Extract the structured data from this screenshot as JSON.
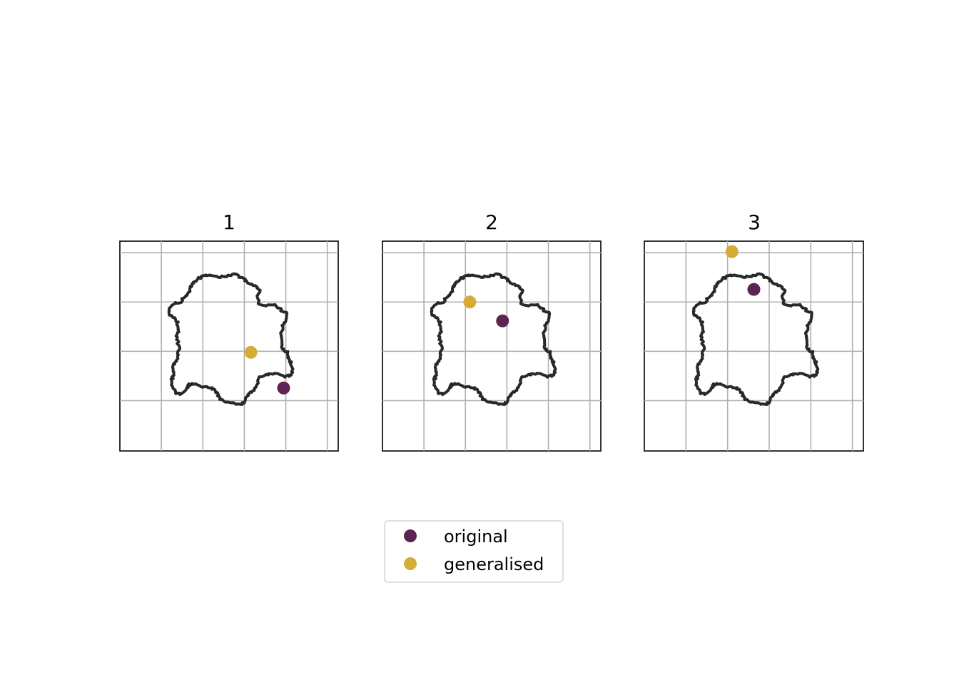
{
  "chart_data": {
    "type": "scatter",
    "panels": [
      {
        "title": "1",
        "original": [
          0.75,
          0.3
        ],
        "generalised": [
          0.6,
          0.47
        ]
      },
      {
        "title": "2",
        "original": [
          0.55,
          0.62
        ],
        "generalised": [
          0.4,
          0.71
        ]
      },
      {
        "title": "3",
        "original": [
          0.5,
          0.77
        ],
        "generalised": [
          0.4,
          0.95
        ]
      }
    ],
    "legend": {
      "entries": [
        {
          "label": "original",
          "color": "#5c2452"
        },
        {
          "label": "generalised",
          "color": "#d4ac36"
        }
      ],
      "placement": "bottom-center"
    },
    "grid": true,
    "tick_labels": false,
    "outline_color": "#272a25"
  }
}
